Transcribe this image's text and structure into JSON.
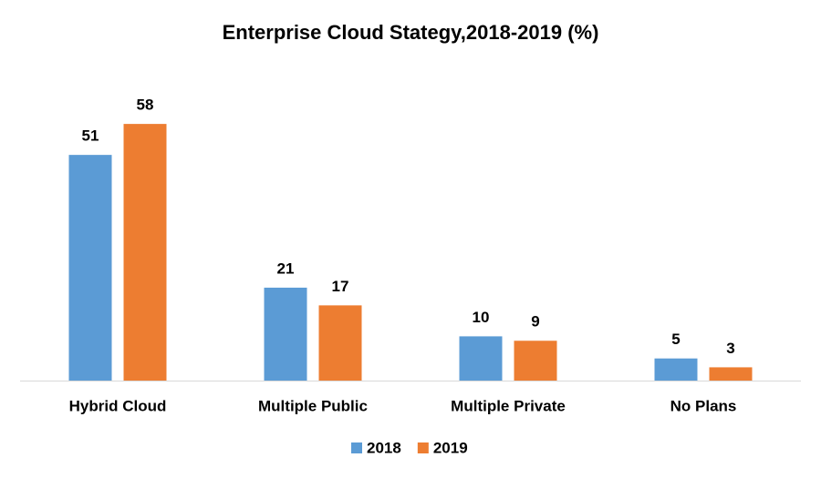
{
  "chart_data": {
    "type": "bar",
    "title": "Enterprise Cloud Stategy,2018-2019 (%)",
    "categories": [
      "Hybrid Cloud",
      "Multiple Public",
      "Multiple Private",
      "No Plans"
    ],
    "series": [
      {
        "name": "2018",
        "color": "#5b9bd5",
        "values": [
          51,
          21,
          10,
          5
        ]
      },
      {
        "name": "2019",
        "color": "#ed7d31",
        "values": [
          58,
          17,
          9,
          3
        ]
      }
    ],
    "legend": "bottom"
  }
}
